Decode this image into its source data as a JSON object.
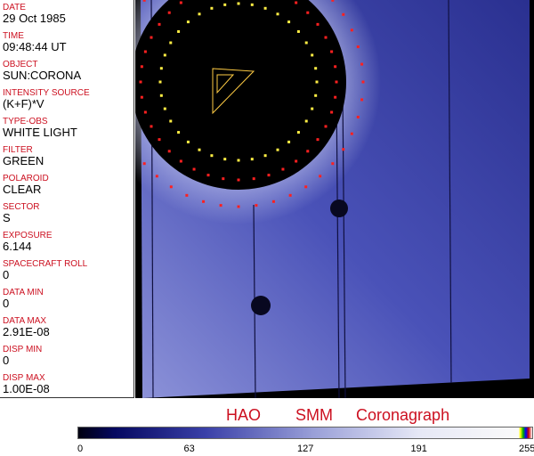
{
  "fields": [
    {
      "label": "DATE",
      "value": "29 Oct 1985"
    },
    {
      "label": "TIME",
      "value": "09:48:44 UT"
    },
    {
      "label": "OBJECT",
      "value": "SUN:CORONA"
    },
    {
      "label": "INTENSITY SOURCE",
      "value": "(K+F)*V"
    },
    {
      "label": "TYPE-OBS",
      "value": "WHITE LIGHT"
    },
    {
      "label": "FILTER",
      "value": "GREEN"
    },
    {
      "label": "POLAROID",
      "value": "CLEAR"
    },
    {
      "label": "SECTOR",
      "value": "S"
    },
    {
      "label": "EXPOSURE",
      "value": "6.144"
    },
    {
      "label": "SPACECRAFT ROLL",
      "value": "0"
    },
    {
      "label": "DATA MIN",
      "value": "0"
    },
    {
      "label": "DATA MAX",
      "value": "2.91E-08"
    },
    {
      "label": "DISP MIN",
      "value": "0"
    },
    {
      "label": "DISP MAX",
      "value": "1.00E-08"
    }
  ],
  "title": "HAO   SMM  Coronagraph",
  "colorbar": {
    "ticks": [
      "0",
      "63",
      "127",
      "191",
      "255"
    ]
  },
  "colors": {
    "label": "#cc1020",
    "field": "#4a52b8",
    "grid_yellow": "#ffee44",
    "grid_red": "#ff2020"
  }
}
